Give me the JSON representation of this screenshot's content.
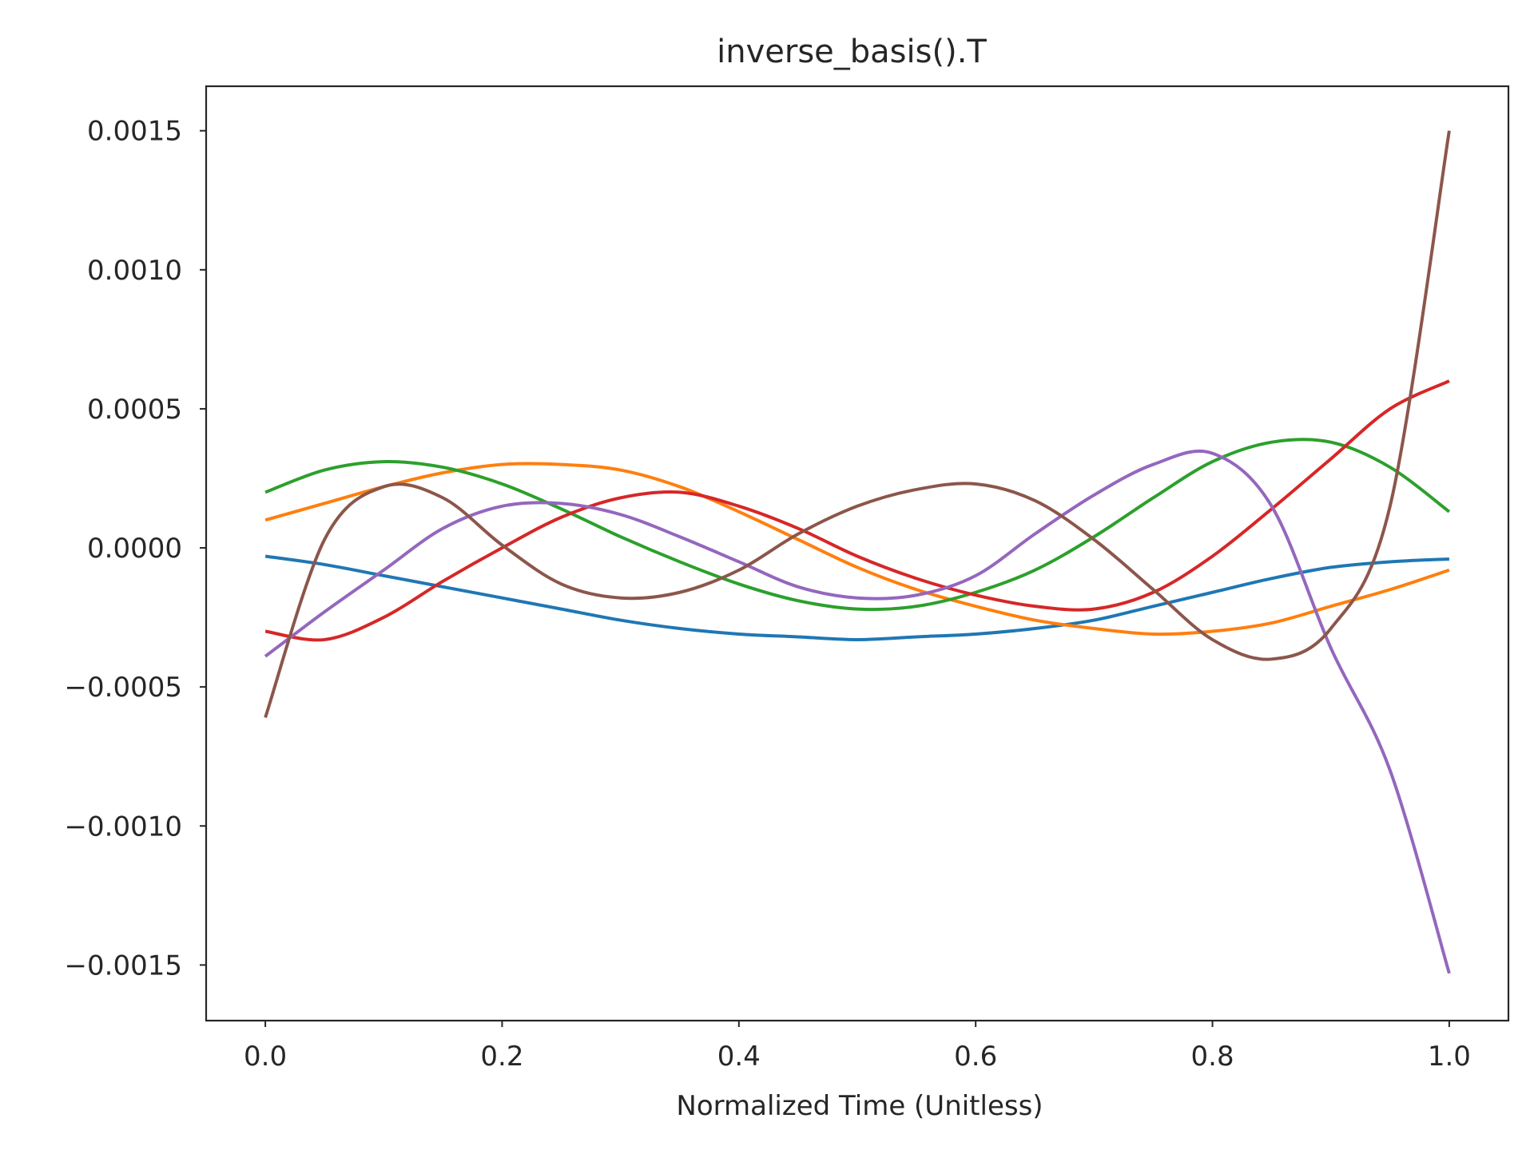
{
  "chart_data": {
    "type": "line",
    "title": "inverse_basis().T",
    "xlabel": "Normalized Time (Unitless)",
    "ylabel": "",
    "xlim": [
      -0.05,
      1.05
    ],
    "ylim": [
      -0.0017,
      0.00166
    ],
    "xticks": [
      0.0,
      0.2,
      0.4,
      0.6,
      0.8,
      1.0
    ],
    "xtick_labels": [
      "0.0",
      "0.2",
      "0.4",
      "0.6",
      "0.8",
      "1.0"
    ],
    "yticks": [
      0.0015,
      0.001,
      0.0005,
      0.0,
      -0.0005,
      -0.001,
      -0.0015
    ],
    "ytick_labels": [
      "0.0015",
      "0.0010",
      "0.0005",
      "0.0000",
      "−0.0005",
      "−0.0010",
      "−0.0015"
    ],
    "grid": false,
    "legend": "none",
    "x": [
      0.0,
      0.05,
      0.1,
      0.15,
      0.2,
      0.25,
      0.3,
      0.35,
      0.4,
      0.45,
      0.5,
      0.55,
      0.6,
      0.65,
      0.7,
      0.75,
      0.8,
      0.85,
      0.9,
      0.95,
      1.0
    ],
    "series": [
      {
        "color": "#1f77b4",
        "values": [
          -3e-05,
          -6e-05,
          -0.0001,
          -0.00014,
          -0.00018,
          -0.00022,
          -0.00026,
          -0.00029,
          -0.00031,
          -0.00032,
          -0.00033,
          -0.00032,
          -0.00031,
          -0.00029,
          -0.00026,
          -0.00021,
          -0.00016,
          -0.00011,
          -7e-05,
          -5e-05,
          -4e-05
        ]
      },
      {
        "color": "#ff7f0e",
        "values": [
          0.0001,
          0.00016,
          0.00022,
          0.00027,
          0.0003,
          0.0003,
          0.00028,
          0.00022,
          0.00013,
          3e-05,
          -7e-05,
          -0.00015,
          -0.00021,
          -0.00026,
          -0.00029,
          -0.00031,
          -0.0003,
          -0.00027,
          -0.00021,
          -0.00015,
          -8e-05
        ]
      },
      {
        "color": "#2ca02c",
        "values": [
          0.0002,
          0.00028,
          0.00031,
          0.00029,
          0.00023,
          0.00014,
          4e-05,
          -5e-05,
          -0.00013,
          -0.00019,
          -0.00022,
          -0.00021,
          -0.00016,
          -8e-05,
          4e-05,
          0.00018,
          0.00031,
          0.00038,
          0.00038,
          0.00029,
          0.00013
        ]
      },
      {
        "color": "#d62728",
        "values": [
          -0.0003,
          -0.00033,
          -0.00025,
          -0.00012,
          0.0,
          0.00011,
          0.00018,
          0.0002,
          0.00015,
          7e-05,
          -3e-05,
          -0.00011,
          -0.00017,
          -0.00021,
          -0.00022,
          -0.00016,
          -3e-05,
          0.00014,
          0.00032,
          0.0005,
          0.0006
        ]
      },
      {
        "color": "#9467bd",
        "values": [
          -0.00039,
          -0.00023,
          -8e-05,
          7e-05,
          0.00015,
          0.00016,
          0.00012,
          4e-05,
          -5e-05,
          -0.00014,
          -0.00018,
          -0.00017,
          -0.0001,
          5e-05,
          0.00019,
          0.0003,
          0.00034,
          0.00015,
          -0.00036,
          -0.0008,
          -0.00153
        ]
      },
      {
        "color": "#8c564b",
        "values": [
          -0.00061,
          3e-05,
          0.00022,
          0.00018,
          1e-05,
          -0.00013,
          -0.00018,
          -0.00016,
          -8e-05,
          5e-05,
          0.00015,
          0.00021,
          0.00023,
          0.00017,
          3e-05,
          -0.00015,
          -0.00033,
          -0.0004,
          -0.00029,
          0.00015,
          0.0015
        ]
      }
    ]
  }
}
